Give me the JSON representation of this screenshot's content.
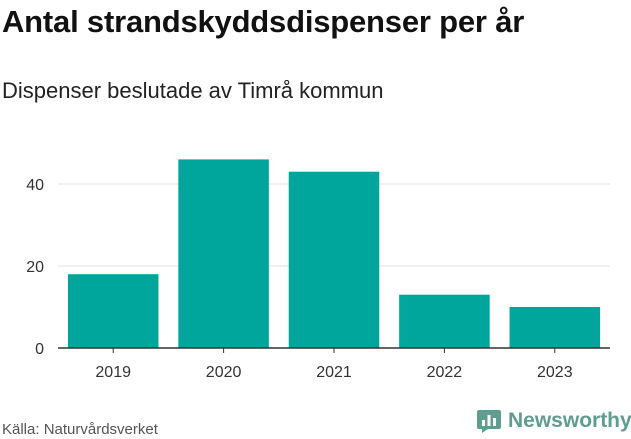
{
  "header": {
    "title": "Antal strandskyddsdispenser per år",
    "subtitle": "Dispenser beslutade av Timrå kommun"
  },
  "footer": {
    "source": "Källa: Naturvårdsverket",
    "brand": "Newsworthy",
    "brand_icon": "bar-chart-icon"
  },
  "colors": {
    "bar": "#00a69c",
    "grid": "#e0e0e0",
    "axis": "#333333",
    "brand": "#5f9e8f"
  },
  "chart_data": {
    "type": "bar",
    "title": "Antal strandskyddsdispenser per år",
    "subtitle": "Dispenser beslutade av Timrå kommun",
    "categories": [
      "2019",
      "2020",
      "2021",
      "2022",
      "2023"
    ],
    "values": [
      18,
      46,
      43,
      13,
      10
    ],
    "xlabel": "",
    "ylabel": "",
    "ylim": [
      0,
      50
    ],
    "yticks": [
      "0",
      "20",
      "40"
    ],
    "ytick_values": [
      0,
      20,
      40
    ],
    "grid": true,
    "legend": "none"
  }
}
